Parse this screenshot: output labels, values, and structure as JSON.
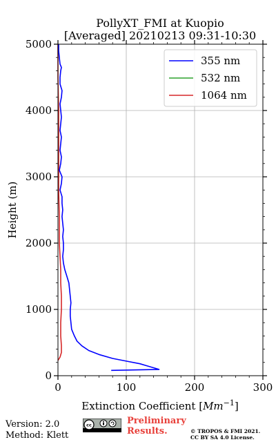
{
  "chart_data": {
    "type": "line",
    "title": "PollyXT_FMI at Kuopio",
    "subtitle": "[Averaged] 20210213 09:31-10:30",
    "xlabel": "Extinction Coefficient [Mm⁻¹]",
    "ylabel": "Height (m)",
    "xlim": [
      0,
      300
    ],
    "ylim": [
      0,
      5000
    ],
    "x_ticks": [
      "0",
      "100",
      "200",
      "300"
    ],
    "y_ticks": [
      "0",
      "1000",
      "2000",
      "3000",
      "4000",
      "5000"
    ],
    "grid": true,
    "legend_position": "top-right",
    "series": [
      {
        "name": "355 nm",
        "color": "#0000ff",
        "points": [
          [
            78,
            80
          ],
          [
            148,
            95
          ],
          [
            130,
            150
          ],
          [
            120,
            180
          ],
          [
            100,
            220
          ],
          [
            80,
            260
          ],
          [
            60,
            320
          ],
          [
            45,
            380
          ],
          [
            35,
            450
          ],
          [
            28,
            520
          ],
          [
            24,
            600
          ],
          [
            20,
            700
          ],
          [
            19,
            800
          ],
          [
            18,
            900
          ],
          [
            18,
            1000
          ],
          [
            19,
            1100
          ],
          [
            18,
            1200
          ],
          [
            17,
            1300
          ],
          [
            16,
            1400
          ],
          [
            13,
            1500
          ],
          [
            10,
            1600
          ],
          [
            8,
            1700
          ],
          [
            7,
            1800
          ],
          [
            8,
            1900
          ],
          [
            8,
            2000
          ],
          [
            7,
            2100
          ],
          [
            8,
            2200
          ],
          [
            7,
            2300
          ],
          [
            6,
            2400
          ],
          [
            7,
            2500
          ],
          [
            6,
            2600
          ],
          [
            6,
            2700
          ],
          [
            3,
            2800
          ],
          [
            5,
            2900
          ],
          [
            6,
            3000
          ],
          [
            2,
            3100
          ],
          [
            4,
            3200
          ],
          [
            5,
            3300
          ],
          [
            3,
            3400
          ],
          [
            4,
            3500
          ],
          [
            5,
            3600
          ],
          [
            3,
            3700
          ],
          [
            4,
            3800
          ],
          [
            5,
            3900
          ],
          [
            4,
            4000
          ],
          [
            3,
            4100
          ],
          [
            5,
            4200
          ],
          [
            6,
            4300
          ],
          [
            3,
            4400
          ],
          [
            3,
            4500
          ],
          [
            4,
            4600
          ],
          [
            5,
            4650
          ],
          [
            3,
            4700
          ],
          [
            2,
            4800
          ],
          [
            1,
            4900
          ],
          [
            1,
            5000
          ]
        ]
      },
      {
        "name": "532 nm",
        "color": "#2ca02c",
        "points": []
      },
      {
        "name": "1064 nm",
        "color": "#d62728",
        "points": [
          [
            0,
            230
          ],
          [
            3,
            280
          ],
          [
            5,
            350
          ],
          [
            5,
            450
          ],
          [
            4,
            600
          ],
          [
            4,
            800
          ],
          [
            5,
            1000
          ],
          [
            5,
            1200
          ],
          [
            4,
            1400
          ],
          [
            4,
            1600
          ],
          [
            3,
            1800
          ],
          [
            2,
            2000
          ],
          [
            2,
            2400
          ],
          [
            1,
            2800
          ],
          [
            1,
            3200
          ],
          [
            1,
            3600
          ],
          [
            1,
            4000
          ],
          [
            0,
            4500
          ],
          [
            0,
            5000
          ]
        ]
      }
    ]
  },
  "footer": {
    "version": "Version: 2.0",
    "method": "Method: Klett",
    "preliminary_line1": "Preliminary",
    "preliminary_line2": "Results.",
    "copyright_line1": "© TROPOS & FMI 2021.",
    "copyright_line2": "CC BY SA 4.0 License.",
    "license_badge": "cc-by-sa-icon"
  }
}
